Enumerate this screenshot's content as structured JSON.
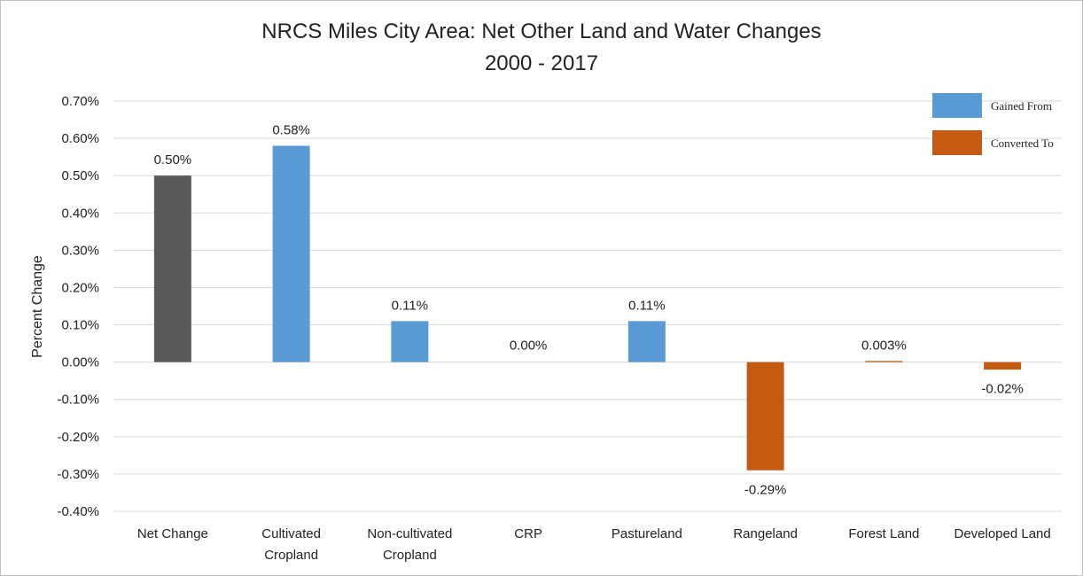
{
  "chart_data": {
    "type": "bar",
    "title": "NRCS Miles City Area: Net Other Land and Water Changes",
    "subtitle": "2000 - 2017",
    "ylabel": "Percent Change",
    "xlabel": "",
    "ylim": [
      -0.4,
      0.7
    ],
    "yticks": [
      "0.70%",
      "0.60%",
      "0.50%",
      "0.40%",
      "0.30%",
      "0.20%",
      "0.10%",
      "0.00%",
      "-0.10%",
      "-0.20%",
      "-0.30%",
      "-0.40%"
    ],
    "ytick_values": [
      0.7,
      0.6,
      0.5,
      0.4,
      0.3,
      0.2,
      0.1,
      0.0,
      -0.1,
      -0.2,
      -0.3,
      -0.4
    ],
    "grid": true,
    "legend_position": "top-right",
    "categories": [
      [
        "Net Change"
      ],
      [
        "Cultivated",
        "Cropland"
      ],
      [
        "Non-cultivated",
        "Cropland"
      ],
      [
        "CRP"
      ],
      [
        "Pastureland"
      ],
      [
        "Rangeland"
      ],
      [
        "Forest Land"
      ],
      [
        "Developed Land"
      ]
    ],
    "values": [
      0.5,
      0.58,
      0.11,
      0.0,
      0.11,
      -0.29,
      0.003,
      -0.02
    ],
    "data_labels": [
      "0.50%",
      "0.58%",
      "0.11%",
      "0.00%",
      "0.11%",
      "-0.29%",
      "0.003%",
      "-0.02%"
    ],
    "bar_groups": [
      "net",
      "gained",
      "gained",
      "gained",
      "gained",
      "converted",
      "converted",
      "converted"
    ],
    "legend": [
      {
        "key": "gained",
        "label": "Gained From",
        "color": "#5b9bd5"
      },
      {
        "key": "converted",
        "label": "Converted To",
        "color": "#c55a11"
      }
    ],
    "colors": {
      "net": "#595959",
      "gained": "#5b9bd5",
      "converted": "#c55a11",
      "grid": "#d9d9d9"
    }
  }
}
